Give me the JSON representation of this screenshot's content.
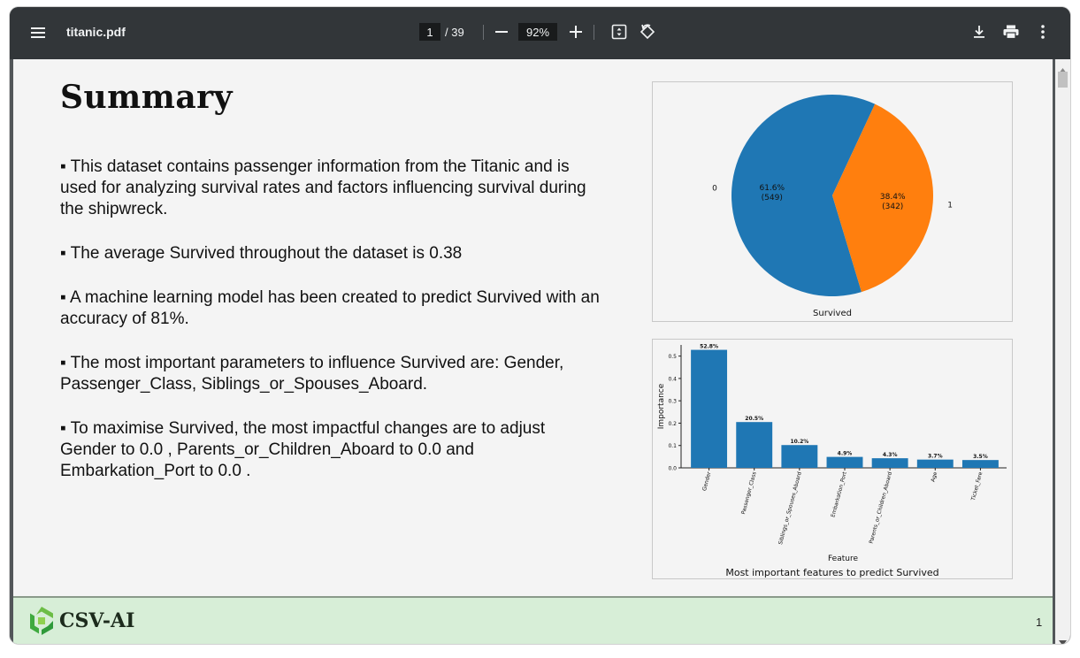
{
  "toolbar": {
    "filename": "titanic.pdf",
    "current_page": "1",
    "page_total": "/ 39",
    "zoom": "92%"
  },
  "document": {
    "title": "Summary",
    "bullets": [
      "▪ This dataset contains passenger information from the Titanic and is used for analyzing survival rates and factors influencing survival during the shipwreck.",
      "▪ The average Survived throughout the dataset is 0.38",
      "▪ A machine learning model has been created to predict Survived with an accuracy of 81%.",
      "▪ The most important parameters to influence Survived are: Gender, Passenger_Class, Siblings_or_Spouses_Aboard.",
      "▪ To maximise Survived, the most impactful changes are to adjust Gender to 0.0 , Parents_or_Children_Aboard to 0.0  and Embarkation_Port to 0.0 ."
    ]
  },
  "chart_data": [
    {
      "type": "pie",
      "xlabel": "Survived",
      "labels": [
        "0",
        "1"
      ],
      "values": [
        549,
        342
      ],
      "percent_labels": [
        "61.6%",
        "38.4%"
      ],
      "count_labels": [
        "(549)",
        "(342)"
      ],
      "colors": [
        "#1f77b4",
        "#ff7f0e"
      ]
    },
    {
      "type": "bar",
      "title": "Most important features to predict Survived",
      "xlabel": "Feature",
      "ylabel": "Importance",
      "categories": [
        "Gender",
        "Passenger_Class",
        "Siblings_or_Spouses_Aboard",
        "Embarkation_Port",
        "Parents_or_Children_Aboard",
        "Age",
        "Ticket_Fare"
      ],
      "values": [
        0.528,
        0.205,
        0.102,
        0.049,
        0.043,
        0.037,
        0.035
      ],
      "value_labels": [
        "52.8%",
        "20.5%",
        "10.2%",
        "4.9%",
        "4.3%",
        "3.7%",
        "3.5%"
      ],
      "yticks": [
        "0.0",
        "0.1",
        "0.2",
        "0.3",
        "0.4",
        "0.5"
      ],
      "ylim": [
        0,
        0.55
      ],
      "color": "#1f77b4"
    }
  ],
  "footer": {
    "brand": "CSV-AI",
    "page_number": "1"
  },
  "icons": {
    "menu": "menu-icon",
    "minus": "zoom-out-icon",
    "plus": "zoom-in-icon",
    "fit": "fit-page-icon",
    "rotate": "rotate-icon",
    "download": "download-icon",
    "print": "print-icon",
    "more": "more-vert-icon"
  }
}
